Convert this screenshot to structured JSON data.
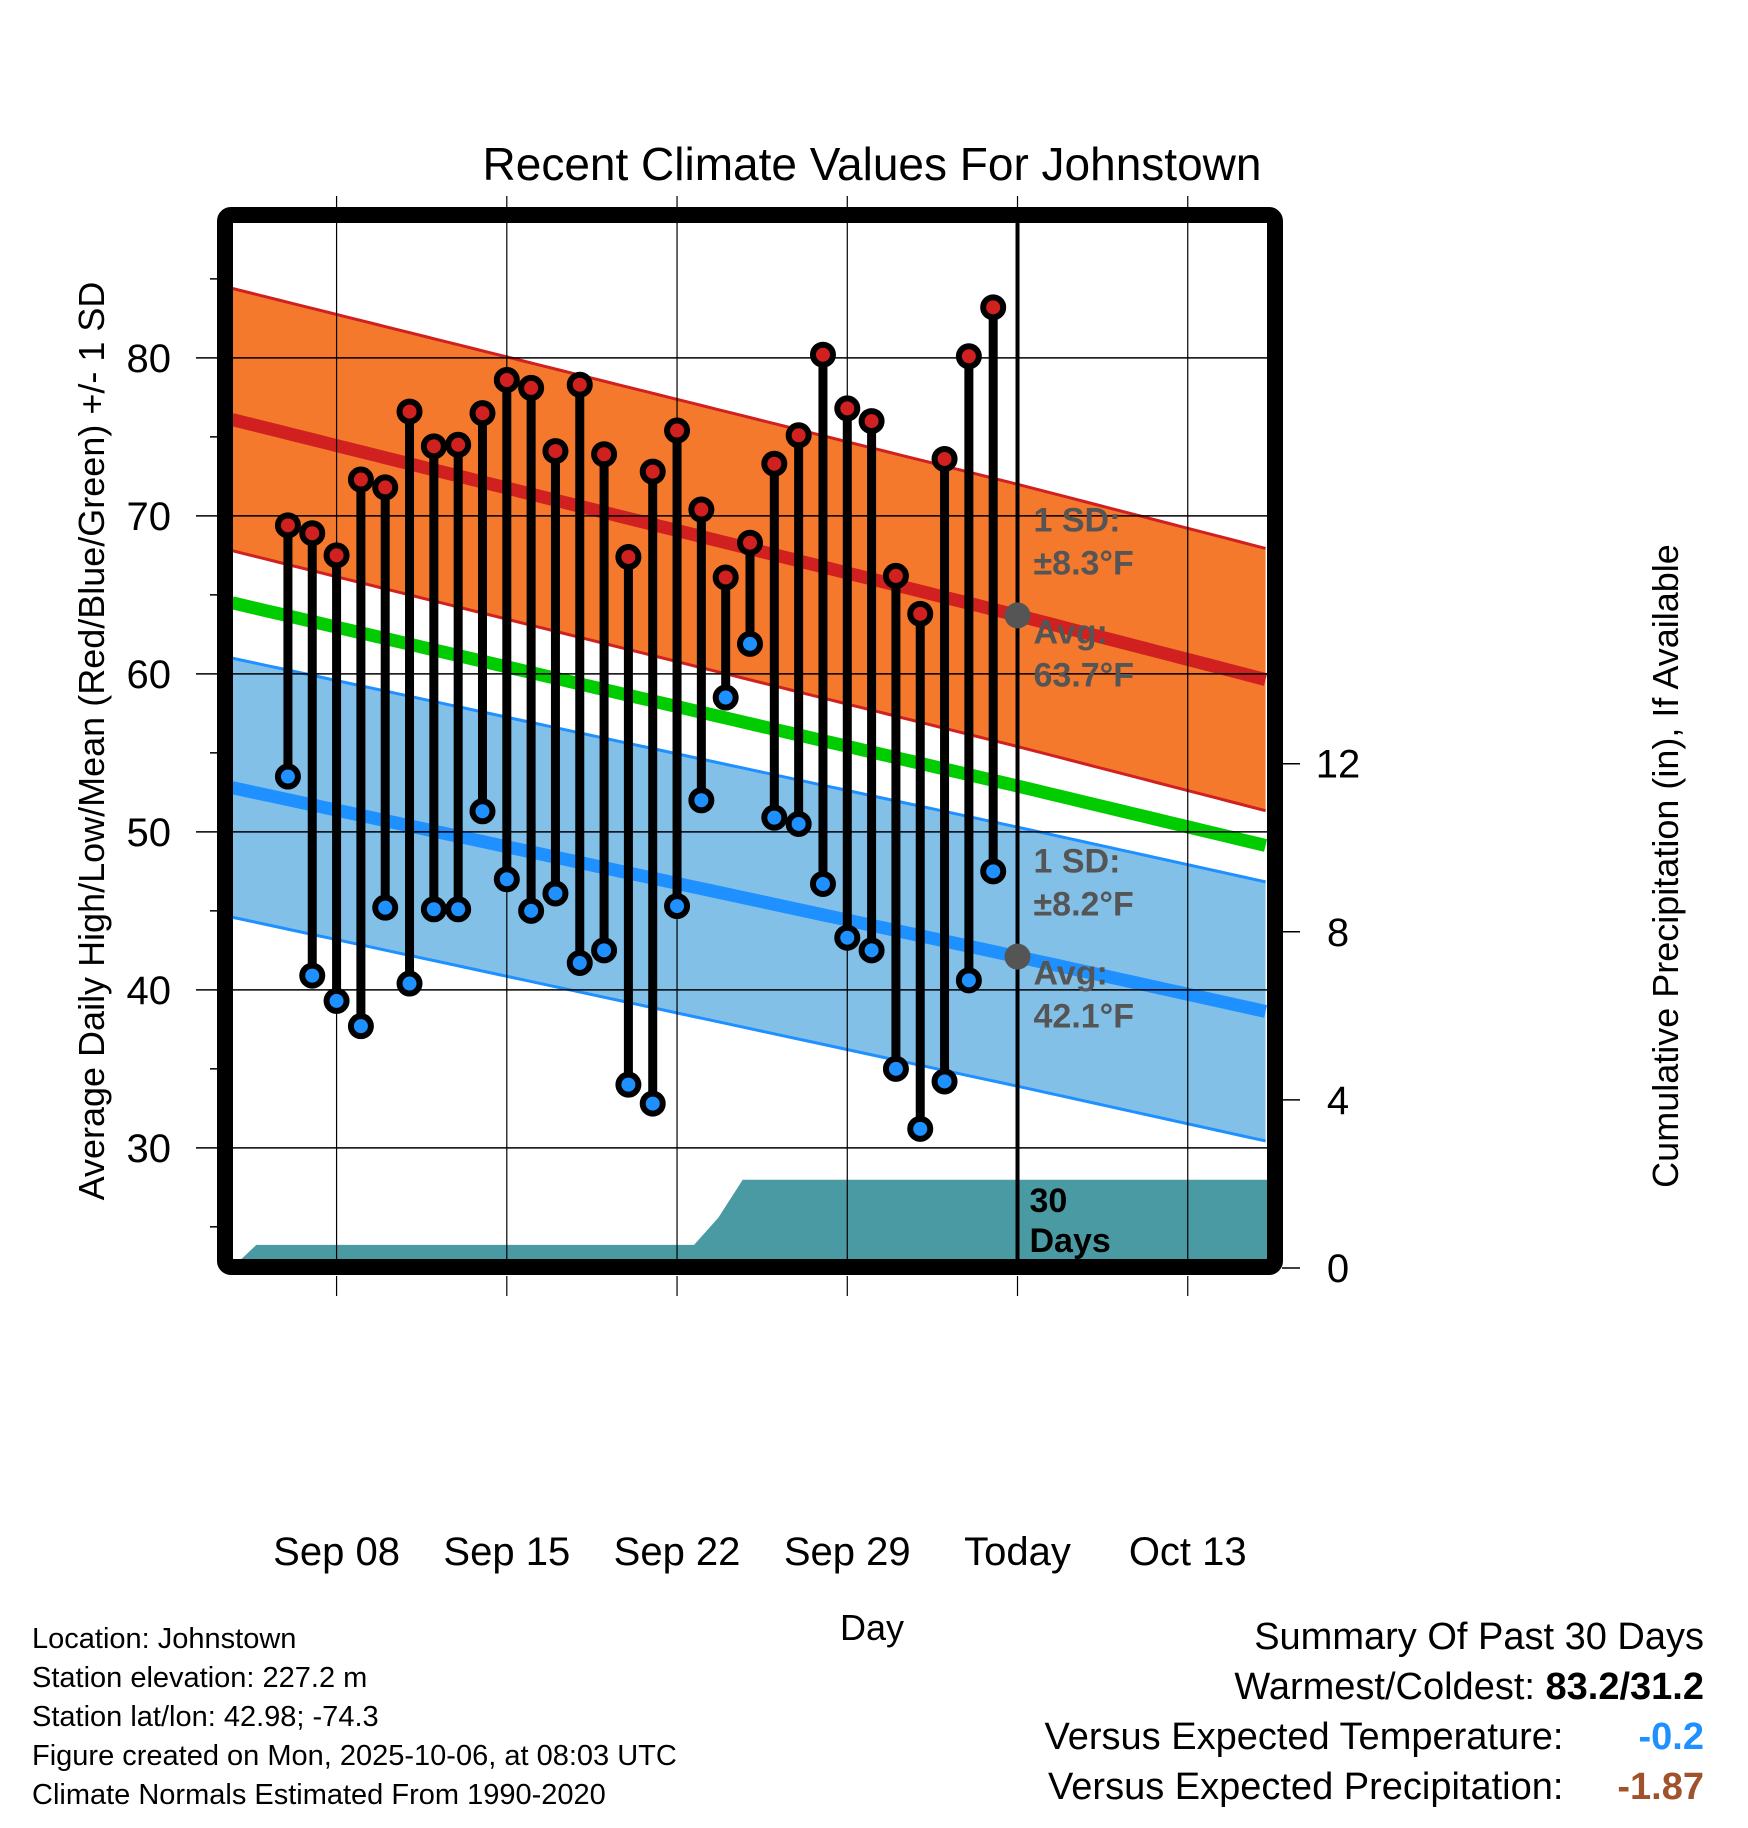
{
  "chart_data": {
    "type": "line",
    "title": "Recent Climate Values For Johnstown",
    "xlabel": "Day",
    "ylabel": "Average Daily High/Low/Mean (Red/Blue/Green) +/- 1 SD",
    "y2label": "Cumulative Precipitation (in), If Available",
    "ylim": [
      22.9,
      88.6
    ],
    "y2lim": [
      0,
      24.7
    ],
    "yticks": [
      30,
      40,
      50,
      60,
      70,
      80
    ],
    "yminor_step": 5,
    "y2ticks": [
      0,
      4,
      8,
      12
    ],
    "grid": true,
    "xlim_days": [
      -32.3,
      10.3
    ],
    "xticks": [
      {
        "day": -28,
        "label": "Sep 08"
      },
      {
        "day": -21,
        "label": "Sep 15"
      },
      {
        "day": -14,
        "label": "Sep 22"
      },
      {
        "day": -7,
        "label": "Sep 29"
      },
      {
        "day": 0,
        "label": "Today"
      },
      {
        "day": 7,
        "label": "Oct 13"
      }
    ],
    "dates": [
      "Sep 06",
      "Sep 07",
      "Sep 08",
      "Sep 09",
      "Sep 10",
      "Sep 11",
      "Sep 12",
      "Sep 13",
      "Sep 14",
      "Sep 15",
      "Sep 16",
      "Sep 17",
      "Sep 18",
      "Sep 19",
      "Sep 20",
      "Sep 21",
      "Sep 22",
      "Sep 23",
      "Sep 24",
      "Sep 25",
      "Sep 26",
      "Sep 27",
      "Sep 28",
      "Sep 29",
      "Sep 30",
      "Oct 01",
      "Oct 02",
      "Oct 03",
      "Oct 04",
      "Oct 05"
    ],
    "days": [
      -30,
      -29,
      -28,
      -27,
      -26,
      -25,
      -24,
      -23,
      -22,
      -21,
      -20,
      -19,
      -18,
      -17,
      -16,
      -15,
      -14,
      -13,
      -12,
      -11,
      -10,
      -9,
      -8,
      -7,
      -6,
      -5,
      -4,
      -3,
      -2,
      -1
    ],
    "series": [
      {
        "name": "Daily High",
        "color": "#d02020",
        "values": [
          69.4,
          68.9,
          67.5,
          72.3,
          71.8,
          76.6,
          74.4,
          74.5,
          76.5,
          78.6,
          78.1,
          74.1,
          78.3,
          73.9,
          67.4,
          72.8,
          75.4,
          70.4,
          66.1,
          68.3,
          73.3,
          75.1,
          80.2,
          76.8,
          76.0,
          66.2,
          63.8,
          73.6,
          80.1,
          83.2
        ]
      },
      {
        "name": "Daily Low",
        "color": "#1e90ff",
        "values": [
          53.5,
          40.9,
          39.3,
          37.7,
          45.2,
          40.4,
          45.1,
          45.1,
          51.3,
          47.0,
          45.0,
          46.1,
          41.7,
          42.5,
          34.0,
          32.8,
          45.3,
          52.0,
          58.5,
          61.9,
          50.9,
          50.5,
          46.7,
          43.3,
          42.5,
          35.0,
          31.2,
          34.2,
          40.6,
          47.5
        ]
      }
    ],
    "normals": {
      "days": [
        -32.3,
        0,
        10.3
      ],
      "avg_high": [
        76.1,
        63.7,
        59.6
      ],
      "avg_low": [
        52.8,
        42.1,
        38.6
      ],
      "avg_mean": [
        64.5,
        52.9,
        49.1
      ],
      "high_sd": 8.3,
      "low_sd": 8.2,
      "colors": {
        "high_band": "#f5792c",
        "high_line": "#d02020",
        "low_band": "#82c0e8",
        "low_line": "#1e90ff",
        "mean_line": "#00cc00"
      }
    },
    "precipitation": {
      "color": "#4a9aa4",
      "days": [
        -32.3,
        -31.3,
        -13.3,
        -12.3,
        -11.3,
        10.3
      ],
      "values": [
        0.0,
        0.55,
        0.55,
        1.2,
        2.1,
        2.1
      ]
    },
    "annotations": {
      "high": {
        "sd_label": "1 SD:",
        "sd_value": "±8.3°F",
        "avg_label": "Avg:",
        "avg_value": "63.7°F",
        "avg": 63.7
      },
      "low": {
        "sd_label": "1 SD:",
        "sd_value": "±8.2°F",
        "avg_label": "Avg:",
        "avg_value": "42.1°F",
        "avg": 42.1
      },
      "window_line1": "30",
      "window_line2": "Days"
    }
  },
  "info": {
    "location": "Location: Johnstown",
    "elevation": "Station elevation: 227.2 m",
    "latlon": "Station lat/lon: 42.98; -74.3",
    "created": "Figure created on Mon, 2025-10-06, at 08:03 UTC",
    "normals": "Climate Normals Estimated From 1990-2020"
  },
  "summary": {
    "heading": "Summary Of Past 30 Days",
    "warmest_label": "Warmest/Coldest:",
    "warmest_value": "83.2/31.2",
    "temp_label": "Versus Expected Temperature:",
    "temp_value": "-0.2",
    "temp_color": "#1e90ff",
    "precip_label": "Versus Expected Precipitation:",
    "precip_value": "-1.87",
    "precip_color": "#a0522d"
  }
}
